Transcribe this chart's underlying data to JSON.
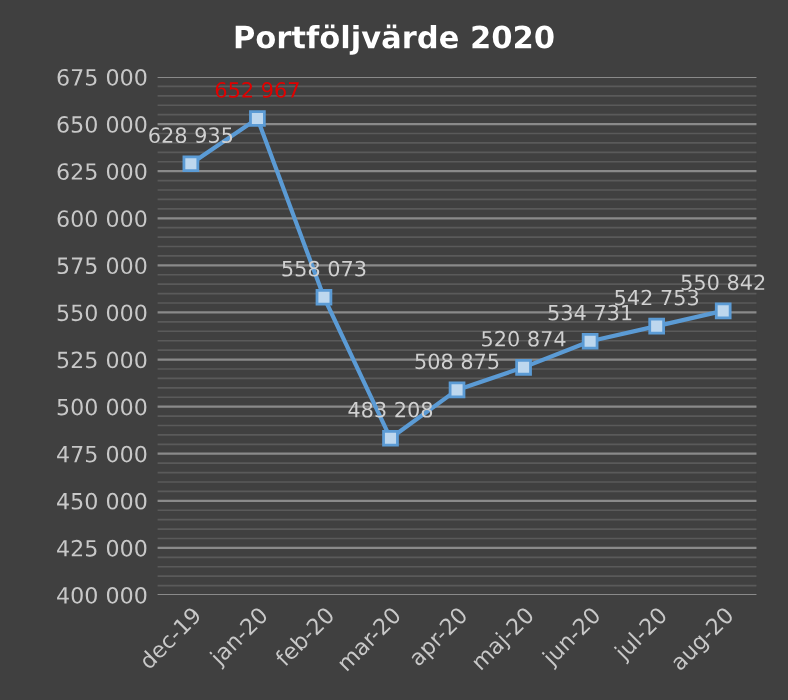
{
  "chart_data": {
    "type": "line",
    "title": "Portföljvärde 2020",
    "categories": [
      "dec-19",
      "jan-20",
      "feb-20",
      "mar-20",
      "apr-20",
      "maj-20",
      "jun-20",
      "jul-20",
      "aug-20"
    ],
    "series": [
      {
        "color": "#5b9bd5",
        "values": [
          628935,
          652967,
          558073,
          483208,
          508875,
          520874,
          534731,
          542753,
          550842
        ]
      }
    ],
    "value_labels": [
      "628 935",
      null,
      "558 073",
      "483 208",
      "508 875",
      "520 874",
      "534 731",
      "542 753",
      "550 842"
    ],
    "annotations": [
      {
        "text": "652 967",
        "x": "jan-20",
        "y": 652967
      }
    ],
    "ylim": [
      400000,
      675000
    ],
    "yticks": [
      {
        "value": 400000,
        "label": "400 000"
      },
      {
        "value": 425000,
        "label": "425 000"
      },
      {
        "value": 450000,
        "label": "450 000"
      },
      {
        "value": 475000,
        "label": "475 000"
      },
      {
        "value": 500000,
        "label": "500 000"
      },
      {
        "value": 525000,
        "label": "525 000"
      },
      {
        "value": 550000,
        "label": "550 000"
      },
      {
        "value": 575000,
        "label": "575 000"
      },
      {
        "value": 600000,
        "label": "600 000"
      },
      {
        "value": 625000,
        "label": "625 000"
      },
      {
        "value": 650000,
        "label": "650 000"
      },
      {
        "value": 675000,
        "label": "675 000"
      }
    ],
    "grid": "y",
    "marker": "square",
    "line_style": "solid",
    "legend": false
  }
}
